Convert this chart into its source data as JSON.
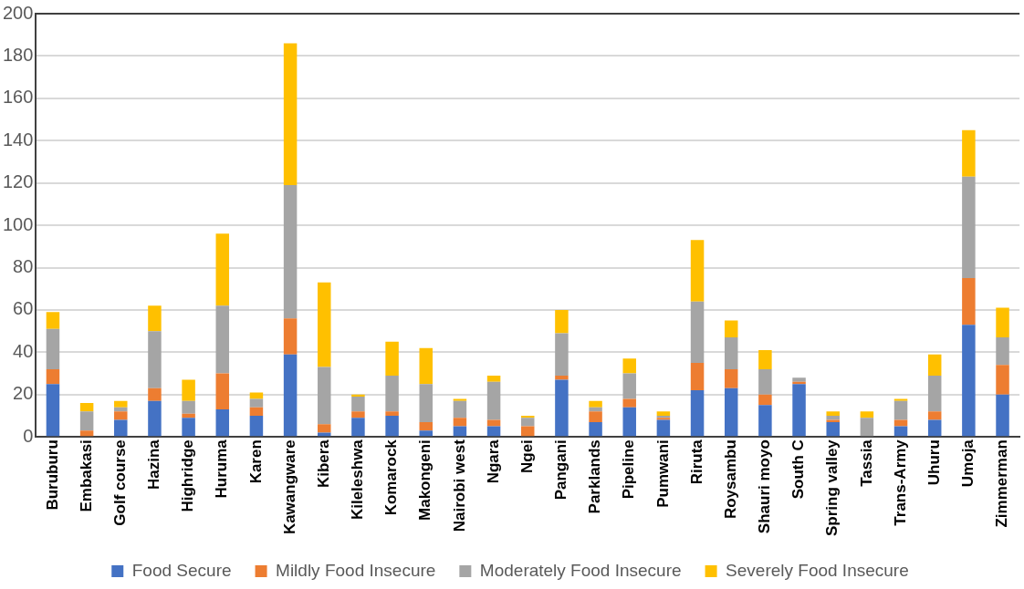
{
  "chart_data": {
    "type": "bar",
    "stacked": true,
    "categories": [
      "Buruburu",
      "Embakasi",
      "Golf course",
      "Hazina",
      "Highridge",
      "Huruma",
      "Karen",
      "Kawangware",
      "Kibera",
      "Kileleshwa",
      "Komarock",
      "Makongeni",
      "Nairobi west",
      "Ngara",
      "Ngei",
      "Pangani",
      "Parklands",
      "Pipeline",
      "Pumwani",
      "Riruta",
      "Roysambu",
      "Shauri moyo",
      "South C",
      "Spring valley",
      "Tassia",
      "Trans-Army",
      "Uhuru",
      "Umoja",
      "Zimmerman"
    ],
    "series": [
      {
        "name": "Food Secure",
        "color": "#4472c4",
        "values": [
          25,
          0,
          8,
          17,
          9,
          13,
          10,
          39,
          2,
          9,
          10,
          3,
          5,
          5,
          0,
          27,
          7,
          14,
          8,
          22,
          23,
          15,
          25,
          7,
          0,
          5,
          8,
          53,
          20
        ]
      },
      {
        "name": "Mildly Food Insecure",
        "color": "#ed7d31",
        "values": [
          7,
          3,
          4,
          6,
          2,
          17,
          4,
          17,
          4,
          3,
          2,
          4,
          4,
          3,
          5,
          2,
          5,
          4,
          1,
          13,
          9,
          5,
          1,
          1,
          0,
          3,
          4,
          22,
          14
        ]
      },
      {
        "name": "Moderately Food Insecure",
        "color": "#a5a5a5",
        "values": [
          19,
          9,
          2,
          27,
          6,
          32,
          4,
          63,
          27,
          7,
          17,
          18,
          8,
          18,
          4,
          20,
          2,
          12,
          1,
          29,
          15,
          12,
          2,
          2,
          9,
          9,
          17,
          48,
          13
        ]
      },
      {
        "name": "Severely Food Insecure",
        "color": "#ffc000",
        "values": [
          8,
          4,
          3,
          12,
          10,
          34,
          3,
          67,
          40,
          1,
          16,
          17,
          1,
          3,
          1,
          11,
          3,
          7,
          2,
          29,
          8,
          9,
          0,
          2,
          3,
          1,
          10,
          22,
          14
        ]
      }
    ],
    "ylim": [
      0,
      200
    ],
    "yticks": [
      0,
      20,
      40,
      60,
      80,
      100,
      120,
      140,
      160,
      180,
      200
    ],
    "grid": "y",
    "legend": "bottom"
  }
}
